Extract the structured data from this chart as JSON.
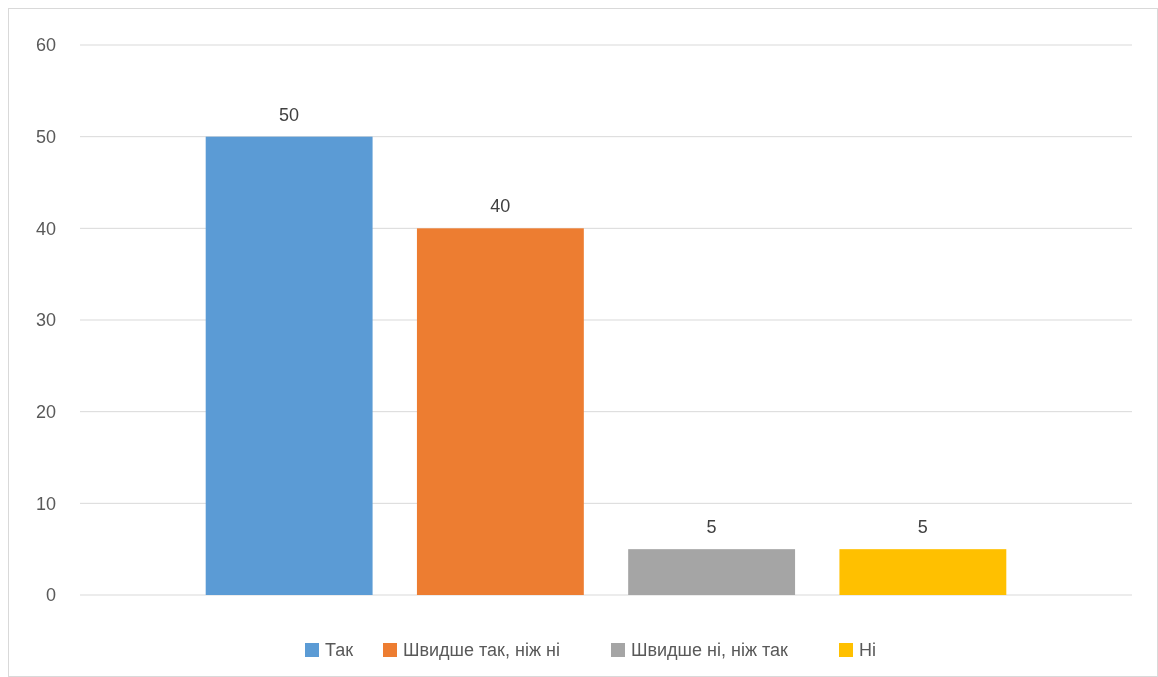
{
  "chart_data": {
    "type": "bar",
    "categories": [
      null
    ],
    "series": [
      {
        "name": "Так",
        "color": "#5b9bd5",
        "values": [
          50
        ]
      },
      {
        "name": "Швидше так, ніж ні",
        "color": "#ed7d31",
        "values": [
          40
        ]
      },
      {
        "name": "Швидше ні, ніж так",
        "color": "#a5a5a5",
        "values": [
          5
        ]
      },
      {
        "name": "Ні",
        "color": "#ffc000",
        "values": [
          5
        ]
      }
    ],
    "ylim": [
      0,
      60
    ],
    "yticks": [
      0,
      10,
      20,
      30,
      40,
      50,
      60
    ],
    "grid": "y",
    "data_labels": true,
    "legend": "bottom"
  }
}
